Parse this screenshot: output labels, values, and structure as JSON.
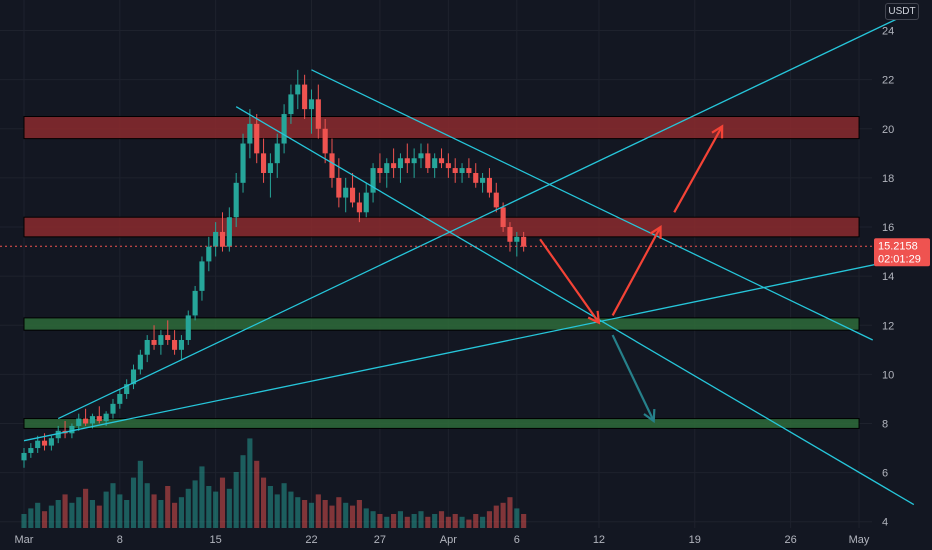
{
  "currency_label": "USDT",
  "colors": {
    "background": "#131722",
    "grid": "#1e222d",
    "up": "#26a69a",
    "down": "#ef5350",
    "trendline": "#26c6da",
    "resistance_zone": "#8b2a2e",
    "support_zone": "#2e6b3a",
    "price_line": "#ef5350",
    "price_badge": "#ef5350",
    "projection_red": "#f44336",
    "projection_teal": "#26808a"
  },
  "price_badge": {
    "price": "15.2158",
    "countdown": "02:01:29"
  },
  "chart_data": {
    "type": "candlestick",
    "ylim": [
      3.5,
      25
    ],
    "grid": true,
    "x_tick_labels": [
      {
        "label": "Mar",
        "day": 1
      },
      {
        "label": "8",
        "day": 8
      },
      {
        "label": "15",
        "day": 15
      },
      {
        "label": "22",
        "day": 22
      },
      {
        "label": "27",
        "day": 27
      },
      {
        "label": "Apr",
        "day": 32
      },
      {
        "label": "6",
        "day": 37
      },
      {
        "label": "12",
        "day": 43
      },
      {
        "label": "19",
        "day": 50
      },
      {
        "label": "26",
        "day": 57
      },
      {
        "label": "May",
        "day": 62
      }
    ],
    "y_ticks": [
      4,
      6,
      8,
      10,
      12,
      14,
      16,
      18,
      20,
      22,
      24
    ],
    "current_price": 15.2158,
    "zones": [
      {
        "kind": "resistance",
        "low": 19.6,
        "high": 20.5,
        "from_day": 1,
        "to_day": 62
      },
      {
        "kind": "resistance",
        "low": 15.6,
        "high": 16.4,
        "from_day": 1,
        "to_day": 62
      },
      {
        "kind": "support",
        "low": 11.8,
        "high": 12.3,
        "from_day": 1,
        "to_day": 62
      },
      {
        "kind": "support",
        "low": 7.8,
        "high": 8.2,
        "from_day": 1,
        "to_day": 62
      }
    ],
    "trendlines": [
      {
        "name": "upper-rising",
        "points": [
          [
            3.5,
            8.2
          ],
          [
            66,
            24.8
          ]
        ]
      },
      {
        "name": "lower-rising",
        "points": [
          [
            1,
            7.3
          ],
          [
            66,
            14.8
          ]
        ]
      },
      {
        "name": "upper-falling",
        "points": [
          [
            22,
            22.4
          ],
          [
            63,
            11.4
          ]
        ]
      },
      {
        "name": "lower-falling",
        "points": [
          [
            16.5,
            20.9
          ],
          [
            66,
            4.7
          ]
        ]
      }
    ],
    "projections": [
      {
        "color": "red",
        "points": [
          [
            38.7,
            15.5
          ],
          [
            43,
            12.1
          ]
        ]
      },
      {
        "color": "red",
        "points": [
          [
            44,
            12.4
          ],
          [
            47.5,
            16.0
          ]
        ]
      },
      {
        "color": "red",
        "points": [
          [
            48.5,
            16.6
          ],
          [
            52,
            20.1
          ]
        ]
      },
      {
        "color": "teal",
        "points": [
          [
            44,
            11.6
          ],
          [
            47,
            8.1
          ]
        ]
      }
    ],
    "candles": [
      [
        1,
        6.5,
        7.0,
        6.2,
        6.8
      ],
      [
        1.5,
        6.8,
        7.2,
        6.6,
        7.0
      ],
      [
        2,
        7.0,
        7.5,
        6.8,
        7.3
      ],
      [
        2.5,
        7.3,
        7.6,
        6.9,
        7.1
      ],
      [
        3,
        7.1,
        7.5,
        6.9,
        7.4
      ],
      [
        3.5,
        7.4,
        7.9,
        7.2,
        7.7
      ],
      [
        4,
        7.7,
        8.1,
        7.4,
        7.6
      ],
      [
        4.5,
        7.6,
        8.0,
        7.4,
        7.9
      ],
      [
        5,
        7.9,
        8.4,
        7.7,
        8.2
      ],
      [
        5.5,
        8.2,
        8.6,
        7.9,
        8.0
      ],
      [
        6,
        8.0,
        8.4,
        7.8,
        8.3
      ],
      [
        6.5,
        8.3,
        8.7,
        8.0,
        8.1
      ],
      [
        7,
        8.1,
        8.5,
        7.9,
        8.4
      ],
      [
        7.5,
        8.4,
        9.0,
        8.2,
        8.8
      ],
      [
        8,
        8.8,
        9.4,
        8.6,
        9.2
      ],
      [
        8.5,
        9.2,
        9.8,
        9.0,
        9.6
      ],
      [
        9,
        9.6,
        10.4,
        9.4,
        10.2
      ],
      [
        9.5,
        10.2,
        11.0,
        10.0,
        10.8
      ],
      [
        10,
        10.8,
        11.6,
        10.5,
        11.4
      ],
      [
        10.5,
        11.4,
        12.0,
        11.0,
        11.2
      ],
      [
        11,
        11.2,
        11.8,
        10.8,
        11.6
      ],
      [
        11.5,
        11.6,
        12.2,
        11.2,
        11.4
      ],
      [
        12,
        11.4,
        11.8,
        10.8,
        11.0
      ],
      [
        12.5,
        11.0,
        11.6,
        10.6,
        11.4
      ],
      [
        13,
        11.4,
        12.6,
        11.2,
        12.4
      ],
      [
        13.5,
        12.4,
        13.6,
        12.2,
        13.4
      ],
      [
        14,
        13.4,
        14.8,
        13.0,
        14.6
      ],
      [
        14.5,
        14.6,
        15.6,
        14.2,
        15.2
      ],
      [
        15,
        15.2,
        16.2,
        14.8,
        15.8
      ],
      [
        15.5,
        15.8,
        16.6,
        15.0,
        15.2
      ],
      [
        16,
        15.2,
        16.8,
        15.0,
        16.4
      ],
      [
        16.5,
        16.4,
        18.2,
        16.0,
        17.8
      ],
      [
        17,
        17.8,
        19.8,
        17.4,
        19.4
      ],
      [
        17.5,
        19.4,
        20.8,
        18.8,
        20.2
      ],
      [
        18,
        20.2,
        20.6,
        18.6,
        19.0
      ],
      [
        18.5,
        19.0,
        19.6,
        17.8,
        18.2
      ],
      [
        19,
        18.2,
        19.0,
        17.2,
        18.6
      ],
      [
        19.5,
        18.6,
        19.8,
        18.0,
        19.4
      ],
      [
        20,
        19.4,
        21.0,
        19.0,
        20.6
      ],
      [
        20.5,
        20.6,
        21.8,
        20.2,
        21.4
      ],
      [
        21,
        21.4,
        22.4,
        20.8,
        21.8
      ],
      [
        21.5,
        21.8,
        22.2,
        20.4,
        20.8
      ],
      [
        22,
        20.8,
        21.6,
        19.8,
        21.2
      ],
      [
        22.5,
        21.2,
        21.8,
        19.6,
        20.0
      ],
      [
        23,
        20.0,
        20.4,
        18.6,
        19.0
      ],
      [
        23.5,
        19.0,
        19.6,
        17.6,
        18.0
      ],
      [
        24,
        18.0,
        18.8,
        16.8,
        17.2
      ],
      [
        24.5,
        17.2,
        18.0,
        16.6,
        17.6
      ],
      [
        25,
        17.6,
        18.2,
        16.8,
        17.0
      ],
      [
        25.5,
        17.0,
        17.4,
        16.2,
        16.6
      ],
      [
        26,
        16.6,
        17.8,
        16.4,
        17.4
      ],
      [
        26.5,
        17.4,
        18.6,
        17.0,
        18.4
      ],
      [
        27,
        18.4,
        19.0,
        17.8,
        18.2
      ],
      [
        27.5,
        18.2,
        18.8,
        17.6,
        18.6
      ],
      [
        28,
        18.6,
        19.2,
        18.0,
        18.4
      ],
      [
        28.5,
        18.4,
        19.0,
        17.8,
        18.8
      ],
      [
        29,
        18.8,
        19.4,
        18.2,
        18.6
      ],
      [
        29.5,
        18.6,
        19.2,
        18.0,
        18.8
      ],
      [
        30,
        18.8,
        19.4,
        18.4,
        19.0
      ],
      [
        30.5,
        19.0,
        19.4,
        18.2,
        18.4
      ],
      [
        31,
        18.4,
        19.0,
        18.0,
        18.8
      ],
      [
        31.5,
        18.8,
        19.2,
        18.4,
        18.6
      ],
      [
        32,
        18.6,
        19.0,
        18.0,
        18.4
      ],
      [
        32.5,
        18.4,
        18.8,
        17.8,
        18.2
      ],
      [
        33,
        18.2,
        18.6,
        17.8,
        18.4
      ],
      [
        33.5,
        18.4,
        18.8,
        18.0,
        18.2
      ],
      [
        34,
        18.2,
        18.6,
        17.6,
        17.8
      ],
      [
        34.5,
        17.8,
        18.2,
        17.4,
        18.0
      ],
      [
        35,
        18.0,
        18.4,
        17.2,
        17.4
      ],
      [
        35.5,
        17.4,
        17.8,
        16.6,
        16.8
      ],
      [
        36,
        16.8,
        17.0,
        15.8,
        16.0
      ],
      [
        36.5,
        16.0,
        16.2,
        15.0,
        15.4
      ],
      [
        37,
        15.4,
        15.8,
        14.8,
        15.6
      ],
      [
        37.5,
        15.6,
        15.8,
        15.0,
        15.2
      ]
    ],
    "volumes": [
      [
        1,
        0.5
      ],
      [
        1.5,
        0.7
      ],
      [
        2,
        0.9
      ],
      [
        2.5,
        0.6
      ],
      [
        3,
        0.8
      ],
      [
        3.5,
        1.0
      ],
      [
        4,
        1.2
      ],
      [
        4.5,
        0.9
      ],
      [
        5,
        1.1
      ],
      [
        5.5,
        1.4
      ],
      [
        6,
        1.0
      ],
      [
        6.5,
        0.8
      ],
      [
        7,
        1.3
      ],
      [
        7.5,
        1.6
      ],
      [
        8,
        1.2
      ],
      [
        8.5,
        1.0
      ],
      [
        9,
        1.8
      ],
      [
        9.5,
        2.4
      ],
      [
        10,
        1.6
      ],
      [
        10.5,
        1.2
      ],
      [
        11,
        1.0
      ],
      [
        11.5,
        1.5
      ],
      [
        12,
        0.9
      ],
      [
        12.5,
        1.1
      ],
      [
        13,
        1.4
      ],
      [
        13.5,
        1.7
      ],
      [
        14,
        2.2
      ],
      [
        14.5,
        1.5
      ],
      [
        15,
        1.3
      ],
      [
        15.5,
        1.8
      ],
      [
        16,
        1.4
      ],
      [
        16.5,
        2.0
      ],
      [
        17,
        2.6
      ],
      [
        17.5,
        3.2
      ],
      [
        18,
        2.4
      ],
      [
        18.5,
        1.8
      ],
      [
        19,
        1.5
      ],
      [
        19.5,
        1.2
      ],
      [
        20,
        1.6
      ],
      [
        20.5,
        1.3
      ],
      [
        21,
        1.1
      ],
      [
        21.5,
        1.0
      ],
      [
        22,
        0.9
      ],
      [
        22.5,
        1.2
      ],
      [
        23,
        1.0
      ],
      [
        23.5,
        0.8
      ],
      [
        24,
        1.1
      ],
      [
        24.5,
        0.9
      ],
      [
        25,
        0.8
      ],
      [
        25.5,
        1.0
      ],
      [
        26,
        0.7
      ],
      [
        26.5,
        0.6
      ],
      [
        27,
        0.5
      ],
      [
        27.5,
        0.4
      ],
      [
        28,
        0.5
      ],
      [
        28.5,
        0.6
      ],
      [
        29,
        0.4
      ],
      [
        29.5,
        0.5
      ],
      [
        30,
        0.6
      ],
      [
        30.5,
        0.4
      ],
      [
        31,
        0.5
      ],
      [
        31.5,
        0.6
      ],
      [
        32,
        0.4
      ],
      [
        32.5,
        0.5
      ],
      [
        33,
        0.4
      ],
      [
        33.5,
        0.3
      ],
      [
        34,
        0.5
      ],
      [
        34.5,
        0.4
      ],
      [
        35,
        0.6
      ],
      [
        35.5,
        0.8
      ],
      [
        36,
        0.9
      ],
      [
        36.5,
        1.1
      ],
      [
        37,
        0.7
      ],
      [
        37.5,
        0.5
      ]
    ]
  }
}
